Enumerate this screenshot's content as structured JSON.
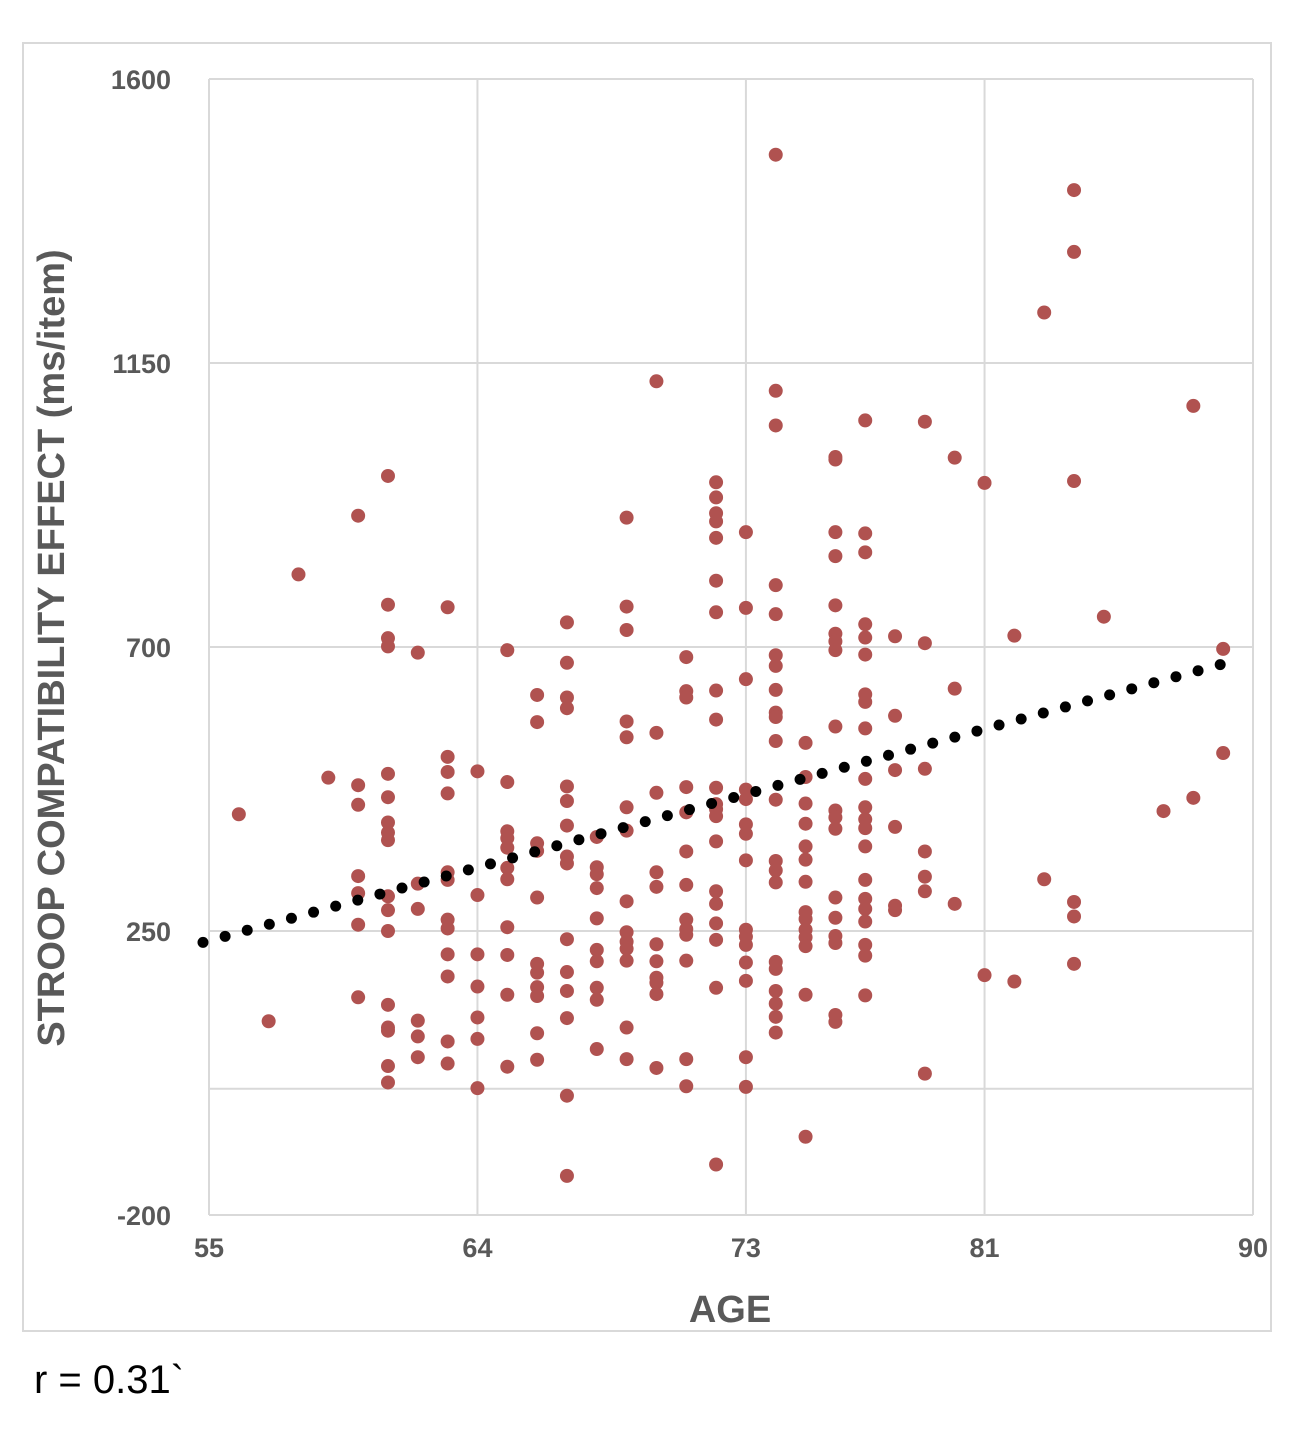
{
  "chart_data": {
    "type": "scatter",
    "xlabel": "AGE",
    "ylabel": "STROOP COMPATIBILITY EFFECT (ms/item)",
    "x_ticks": [
      55,
      64,
      73,
      81,
      90
    ],
    "y_ticks": [
      -200,
      250,
      700,
      1150,
      1600
    ],
    "xlim": [
      55,
      90
    ],
    "ylim": [
      -200,
      1600
    ],
    "grid": true,
    "marker_color": "#b05250",
    "trendline": {
      "style": "dotted",
      "color": "#000000",
      "x": [
        55,
        88.9
      ],
      "y": [
        232,
        672
      ]
    },
    "annotation": "r = 0.31`",
    "points": [
      [
        56,
        435
      ],
      [
        57,
        107
      ],
      [
        58,
        815
      ],
      [
        59,
        493
      ],
      [
        60,
        481
      ],
      [
        60,
        450
      ],
      [
        60,
        310
      ],
      [
        60,
        260
      ],
      [
        60,
        908
      ],
      [
        60,
        337
      ],
      [
        60,
        145
      ],
      [
        61,
        971
      ],
      [
        61,
        767
      ],
      [
        61,
        714
      ],
      [
        61,
        701
      ],
      [
        61,
        499
      ],
      [
        61,
        462
      ],
      [
        61,
        422
      ],
      [
        61,
        406
      ],
      [
        61,
        394
      ],
      [
        61,
        305
      ],
      [
        61,
        283
      ],
      [
        61,
        250
      ],
      [
        61,
        133
      ],
      [
        61,
        97
      ],
      [
        61,
        92
      ],
      [
        61,
        36
      ],
      [
        61,
        10
      ],
      [
        62,
        691
      ],
      [
        62,
        285
      ],
      [
        62,
        325
      ],
      [
        62,
        108
      ],
      [
        62,
        83
      ],
      [
        62,
        50
      ],
      [
        63,
        763
      ],
      [
        63,
        526
      ],
      [
        63,
        502
      ],
      [
        63,
        468
      ],
      [
        63,
        343
      ],
      [
        63,
        331
      ],
      [
        63,
        268
      ],
      [
        63,
        254
      ],
      [
        63,
        213
      ],
      [
        63,
        178
      ],
      [
        63,
        75
      ],
      [
        63,
        40
      ],
      [
        64,
        503
      ],
      [
        64,
        307
      ],
      [
        64,
        213
      ],
      [
        64,
        162
      ],
      [
        64,
        113
      ],
      [
        64,
        79
      ],
      [
        64,
        1
      ],
      [
        65,
        695
      ],
      [
        65,
        486
      ],
      [
        65,
        408
      ],
      [
        65,
        397
      ],
      [
        65,
        382
      ],
      [
        65,
        350
      ],
      [
        65,
        332
      ],
      [
        65,
        256
      ],
      [
        65,
        212
      ],
      [
        65,
        149
      ],
      [
        65,
        35
      ],
      [
        66,
        624
      ],
      [
        66,
        581
      ],
      [
        66,
        389
      ],
      [
        66,
        377
      ],
      [
        66,
        303
      ],
      [
        66,
        198
      ],
      [
        66,
        184
      ],
      [
        66,
        161
      ],
      [
        66,
        147
      ],
      [
        66,
        88
      ],
      [
        66,
        46
      ],
      [
        67,
        739
      ],
      [
        67,
        675
      ],
      [
        67,
        620
      ],
      [
        67,
        603
      ],
      [
        67,
        479
      ],
      [
        67,
        456
      ],
      [
        67,
        417
      ],
      [
        67,
        368
      ],
      [
        67,
        357
      ],
      [
        67,
        237
      ],
      [
        67,
        185
      ],
      [
        67,
        155
      ],
      [
        67,
        112
      ],
      [
        67,
        -11
      ],
      [
        67,
        -138
      ],
      [
        68,
        399
      ],
      [
        68,
        351
      ],
      [
        68,
        340
      ],
      [
        68,
        318
      ],
      [
        68,
        270
      ],
      [
        68,
        220
      ],
      [
        68,
        202
      ],
      [
        68,
        160
      ],
      [
        68,
        141
      ],
      [
        68,
        63
      ],
      [
        69,
        905
      ],
      [
        69,
        764
      ],
      [
        69,
        727
      ],
      [
        69,
        582
      ],
      [
        69,
        557
      ],
      [
        69,
        446
      ],
      [
        69,
        409
      ],
      [
        69,
        297
      ],
      [
        69,
        248
      ],
      [
        69,
        233
      ],
      [
        69,
        222
      ],
      [
        69,
        203
      ],
      [
        69,
        97
      ],
      [
        69,
        47
      ],
      [
        70,
        1121
      ],
      [
        70,
        564
      ],
      [
        70,
        469
      ],
      [
        70,
        343
      ],
      [
        70,
        320
      ],
      [
        70,
        229
      ],
      [
        70,
        202
      ],
      [
        70,
        176
      ],
      [
        70,
        168
      ],
      [
        70,
        150
      ],
      [
        70,
        33
      ],
      [
        71,
        684
      ],
      [
        71,
        630
      ],
      [
        71,
        620
      ],
      [
        71,
        478
      ],
      [
        71,
        438
      ],
      [
        71,
        376
      ],
      [
        71,
        323
      ],
      [
        71,
        268
      ],
      [
        71,
        253
      ],
      [
        71,
        244
      ],
      [
        71,
        203
      ],
      [
        71,
        47
      ],
      [
        71,
        4
      ],
      [
        72,
        961
      ],
      [
        72,
        937
      ],
      [
        72,
        912
      ],
      [
        72,
        899
      ],
      [
        72,
        873
      ],
      [
        72,
        805
      ],
      [
        72,
        755
      ],
      [
        72,
        631
      ],
      [
        72,
        585
      ],
      [
        72,
        477
      ],
      [
        72,
        451
      ],
      [
        72,
        443
      ],
      [
        72,
        432
      ],
      [
        72,
        392
      ],
      [
        72,
        313
      ],
      [
        72,
        293
      ],
      [
        72,
        262
      ],
      [
        72,
        236
      ],
      [
        72,
        160
      ],
      [
        72,
        -120
      ],
      [
        73,
        882
      ],
      [
        73,
        762
      ],
      [
        73,
        649
      ],
      [
        73,
        474
      ],
      [
        73,
        459
      ],
      [
        73,
        419
      ],
      [
        73,
        404
      ],
      [
        73,
        362
      ],
      [
        73,
        252
      ],
      [
        73,
        241
      ],
      [
        73,
        228
      ],
      [
        73,
        200
      ],
      [
        73,
        171
      ],
      [
        73,
        50
      ],
      [
        73,
        3
      ],
      [
        74,
        1480
      ],
      [
        74,
        1106
      ],
      [
        74,
        1051
      ],
      [
        74,
        798
      ],
      [
        74,
        752
      ],
      [
        74,
        687
      ],
      [
        74,
        670
      ],
      [
        74,
        632
      ],
      [
        74,
        596
      ],
      [
        74,
        589
      ],
      [
        74,
        551
      ],
      [
        74,
        458
      ],
      [
        74,
        361
      ],
      [
        74,
        346
      ],
      [
        74,
        327
      ],
      [
        74,
        201
      ],
      [
        74,
        190
      ],
      [
        74,
        155
      ],
      [
        74,
        135
      ],
      [
        74,
        114
      ],
      [
        74,
        89
      ],
      [
        75,
        548
      ],
      [
        75,
        494
      ],
      [
        75,
        452
      ],
      [
        75,
        420
      ],
      [
        75,
        384
      ],
      [
        75,
        363
      ],
      [
        75,
        328
      ],
      [
        75,
        280
      ],
      [
        75,
        269
      ],
      [
        75,
        252
      ],
      [
        75,
        240
      ],
      [
        75,
        226
      ],
      [
        75,
        149
      ],
      [
        75,
        -76
      ],
      [
        76,
        1001
      ],
      [
        76,
        997
      ],
      [
        76,
        882
      ],
      [
        76,
        844
      ],
      [
        76,
        766
      ],
      [
        76,
        721
      ],
      [
        76,
        709
      ],
      [
        76,
        695
      ],
      [
        76,
        574
      ],
      [
        76,
        441
      ],
      [
        76,
        430
      ],
      [
        76,
        412
      ],
      [
        76,
        303
      ],
      [
        76,
        271
      ],
      [
        76,
        242
      ],
      [
        76,
        231
      ],
      [
        76,
        117
      ],
      [
        76,
        106
      ],
      [
        77,
        1059
      ],
      [
        77,
        880
      ],
      [
        77,
        850
      ],
      [
        77,
        736
      ],
      [
        77,
        715
      ],
      [
        77,
        688
      ],
      [
        77,
        625
      ],
      [
        77,
        613
      ],
      [
        77,
        571
      ],
      [
        77,
        491
      ],
      [
        77,
        446
      ],
      [
        77,
        427
      ],
      [
        77,
        413
      ],
      [
        77,
        384
      ],
      [
        77,
        331
      ],
      [
        77,
        301
      ],
      [
        77,
        285
      ],
      [
        77,
        265
      ],
      [
        77,
        228
      ],
      [
        77,
        211
      ],
      [
        77,
        148
      ],
      [
        78,
        717
      ],
      [
        78,
        591
      ],
      [
        78,
        505
      ],
      [
        78,
        415
      ],
      [
        78,
        290
      ],
      [
        78,
        283
      ],
      [
        79,
        1057
      ],
      [
        79,
        706
      ],
      [
        79,
        507
      ],
      [
        79,
        376
      ],
      [
        79,
        336
      ],
      [
        79,
        313
      ],
      [
        79,
        24
      ],
      [
        80,
        1000
      ],
      [
        80,
        634
      ],
      [
        80,
        293
      ],
      [
        81,
        960
      ],
      [
        81,
        180
      ],
      [
        82,
        718
      ],
      [
        82,
        170
      ],
      [
        83,
        1230
      ],
      [
        83,
        332
      ],
      [
        84,
        1424
      ],
      [
        84,
        1326
      ],
      [
        84,
        963
      ],
      [
        84,
        296
      ],
      [
        84,
        273
      ],
      [
        84,
        198
      ],
      [
        85,
        748
      ],
      [
        87,
        440
      ],
      [
        88,
        1082
      ],
      [
        88,
        461
      ],
      [
        89,
        697
      ],
      [
        89,
        532
      ]
    ]
  }
}
